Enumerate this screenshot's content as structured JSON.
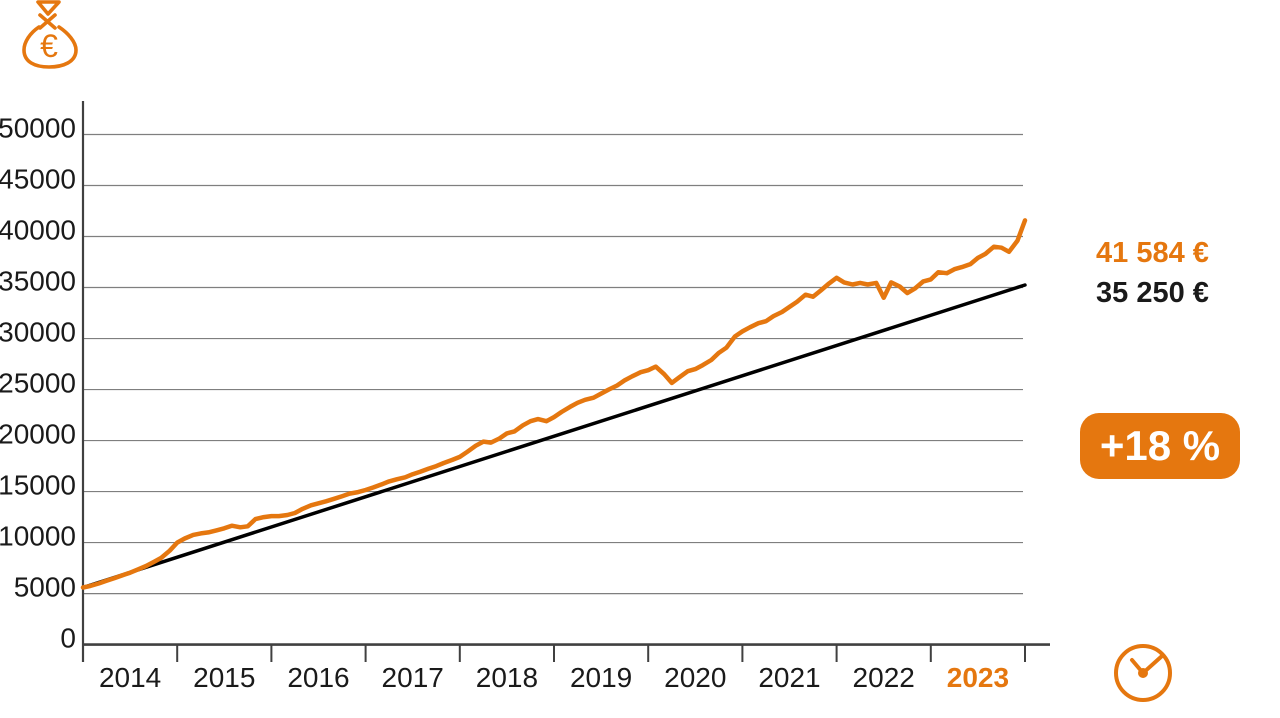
{
  "colors": {
    "accent_orange": "#e5770f",
    "series_black": "#000000",
    "grid_gray": "#7f7f7f",
    "axis_gray": "#404040",
    "text_dark": "#1a1a1a",
    "badge_text": "#ffffff"
  },
  "icons": {
    "money_bag": "money-bag-euro-icon",
    "money_bag_symbol": "€",
    "clock": "clock-icon"
  },
  "annotations": {
    "portfolio_value": "41 584 €",
    "contributions_value": "35 250 €",
    "gain_badge": "+18 %"
  },
  "chart_data": {
    "type": "line",
    "title": "",
    "xlabel": "",
    "ylabel": "",
    "grid": true,
    "legend_position": "none",
    "xlim": [
      2014,
      2024
    ],
    "ylim": [
      0,
      50000
    ],
    "yticks": [
      0,
      5000,
      10000,
      15000,
      20000,
      25000,
      30000,
      35000,
      40000,
      45000,
      50000
    ],
    "x_ticks": [
      {
        "label": "2014",
        "highlight": false
      },
      {
        "label": "2015",
        "highlight": false
      },
      {
        "label": "2016",
        "highlight": false
      },
      {
        "label": "2017",
        "highlight": false
      },
      {
        "label": "2018",
        "highlight": false
      },
      {
        "label": "2019",
        "highlight": false
      },
      {
        "label": "2020",
        "highlight": false
      },
      {
        "label": "2021",
        "highlight": false
      },
      {
        "label": "2022",
        "highlight": false
      },
      {
        "label": "2023",
        "highlight": true
      }
    ],
    "series": [
      {
        "name": "portfolio-value",
        "color": "#e5770f",
        "width": 4.5,
        "end_label": "41 584 €",
        "points": [
          [
            2014.0,
            5600
          ],
          [
            2014.08,
            5750
          ],
          [
            2014.17,
            6000
          ],
          [
            2014.25,
            6250
          ],
          [
            2014.33,
            6500
          ],
          [
            2014.42,
            6800
          ],
          [
            2014.5,
            7050
          ],
          [
            2014.58,
            7350
          ],
          [
            2014.67,
            7700
          ],
          [
            2014.75,
            8100
          ],
          [
            2014.83,
            8500
          ],
          [
            2014.92,
            9200
          ],
          [
            2015.0,
            10000
          ],
          [
            2015.08,
            10400
          ],
          [
            2015.17,
            10750
          ],
          [
            2015.25,
            10900
          ],
          [
            2015.33,
            11000
          ],
          [
            2015.42,
            11200
          ],
          [
            2015.5,
            11400
          ],
          [
            2015.58,
            11650
          ],
          [
            2015.67,
            11500
          ],
          [
            2015.75,
            11600
          ],
          [
            2015.83,
            12300
          ],
          [
            2015.92,
            12500
          ],
          [
            2016.0,
            12600
          ],
          [
            2016.08,
            12600
          ],
          [
            2016.17,
            12700
          ],
          [
            2016.25,
            12900
          ],
          [
            2016.33,
            13300
          ],
          [
            2016.42,
            13650
          ],
          [
            2016.5,
            13850
          ],
          [
            2016.58,
            14050
          ],
          [
            2016.67,
            14300
          ],
          [
            2016.75,
            14550
          ],
          [
            2016.83,
            14800
          ],
          [
            2016.92,
            14950
          ],
          [
            2017.0,
            15150
          ],
          [
            2017.08,
            15400
          ],
          [
            2017.17,
            15700
          ],
          [
            2017.25,
            16000
          ],
          [
            2017.33,
            16200
          ],
          [
            2017.42,
            16400
          ],
          [
            2017.5,
            16700
          ],
          [
            2017.58,
            16950
          ],
          [
            2017.67,
            17250
          ],
          [
            2017.75,
            17500
          ],
          [
            2017.83,
            17800
          ],
          [
            2017.92,
            18100
          ],
          [
            2018.0,
            18400
          ],
          [
            2018.08,
            18900
          ],
          [
            2018.17,
            19500
          ],
          [
            2018.25,
            19900
          ],
          [
            2018.33,
            19800
          ],
          [
            2018.42,
            20200
          ],
          [
            2018.5,
            20700
          ],
          [
            2018.58,
            20900
          ],
          [
            2018.67,
            21500
          ],
          [
            2018.75,
            21900
          ],
          [
            2018.83,
            22100
          ],
          [
            2018.92,
            21900
          ],
          [
            2019.0,
            22300
          ],
          [
            2019.08,
            22800
          ],
          [
            2019.17,
            23300
          ],
          [
            2019.25,
            23700
          ],
          [
            2019.33,
            24000
          ],
          [
            2019.42,
            24200
          ],
          [
            2019.5,
            24600
          ],
          [
            2019.58,
            25000
          ],
          [
            2019.67,
            25400
          ],
          [
            2019.75,
            25900
          ],
          [
            2019.83,
            26300
          ],
          [
            2019.92,
            26700
          ],
          [
            2020.0,
            26900
          ],
          [
            2020.08,
            27250
          ],
          [
            2020.17,
            26500
          ],
          [
            2020.25,
            25650
          ],
          [
            2020.33,
            26200
          ],
          [
            2020.42,
            26800
          ],
          [
            2020.5,
            27000
          ],
          [
            2020.58,
            27400
          ],
          [
            2020.67,
            27900
          ],
          [
            2020.75,
            28600
          ],
          [
            2020.83,
            29100
          ],
          [
            2020.92,
            30200
          ],
          [
            2021.0,
            30700
          ],
          [
            2021.08,
            31100
          ],
          [
            2021.17,
            31500
          ],
          [
            2021.25,
            31700
          ],
          [
            2021.33,
            32200
          ],
          [
            2021.42,
            32600
          ],
          [
            2021.5,
            33100
          ],
          [
            2021.58,
            33600
          ],
          [
            2021.67,
            34300
          ],
          [
            2021.75,
            34100
          ],
          [
            2021.83,
            34700
          ],
          [
            2021.92,
            35400
          ],
          [
            2022.0,
            35950
          ],
          [
            2022.08,
            35500
          ],
          [
            2022.17,
            35300
          ],
          [
            2022.25,
            35450
          ],
          [
            2022.33,
            35300
          ],
          [
            2022.42,
            35450
          ],
          [
            2022.5,
            34000
          ],
          [
            2022.58,
            35500
          ],
          [
            2022.67,
            35100
          ],
          [
            2022.75,
            34450
          ],
          [
            2022.83,
            34900
          ],
          [
            2022.92,
            35600
          ],
          [
            2023.0,
            35800
          ],
          [
            2023.08,
            36500
          ],
          [
            2023.17,
            36400
          ],
          [
            2023.25,
            36800
          ],
          [
            2023.33,
            37000
          ],
          [
            2023.42,
            37300
          ],
          [
            2023.5,
            37900
          ],
          [
            2023.58,
            38300
          ],
          [
            2023.67,
            39000
          ],
          [
            2023.75,
            38900
          ],
          [
            2023.83,
            38500
          ],
          [
            2023.92,
            39600
          ],
          [
            2024.0,
            41584
          ]
        ]
      },
      {
        "name": "contributions",
        "color": "#000000",
        "width": 3.5,
        "end_label": "35 250 €",
        "points": [
          [
            2014.0,
            5600
          ],
          [
            2024.0,
            35250
          ]
        ]
      }
    ]
  }
}
